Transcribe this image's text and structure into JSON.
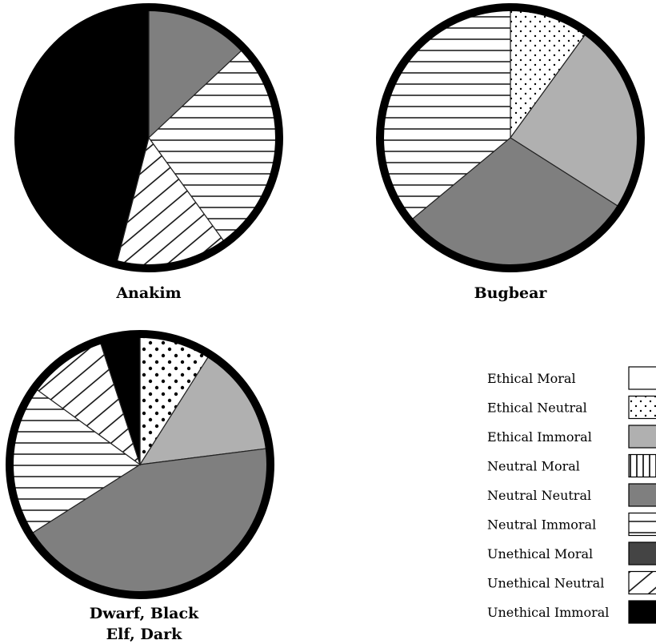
{
  "chart_data": [
    {
      "type": "pie",
      "title": "Anakim",
      "slices": [
        {
          "category": "Neutral Neutral",
          "value": 13
        },
        {
          "category": "Neutral Immoral",
          "value": 27
        },
        {
          "category": "Unethical Neutral",
          "value": 14
        },
        {
          "category": "Unethical Immoral",
          "value": 46
        }
      ]
    },
    {
      "type": "pie",
      "title": "Bugbear",
      "slices": [
        {
          "category": "Ethical Neutral",
          "value": 10
        },
        {
          "category": "Ethical Immoral",
          "value": 24
        },
        {
          "category": "Neutral Neutral",
          "value": 30
        },
        {
          "category": "Neutral Immoral",
          "value": 36
        }
      ]
    },
    {
      "type": "pie",
      "title": "Dwarf, Black",
      "subtitle": "Elf, Dark",
      "slices": [
        {
          "category": "Ethical Neutral",
          "value": 9
        },
        {
          "category": "Ethical Immoral",
          "value": 14
        },
        {
          "category": "Neutral Neutral",
          "value": 43
        },
        {
          "category": "Neutral Immoral",
          "value": 19
        },
        {
          "category": "Unethical Neutral",
          "value": 10
        },
        {
          "category": "Unethical Immoral",
          "value": 5
        }
      ]
    }
  ],
  "legend": {
    "placement": "bottom-right",
    "items": [
      {
        "label": "Ethical Moral",
        "pattern": "white"
      },
      {
        "label": "Ethical Neutral",
        "pattern": "dots"
      },
      {
        "label": "Ethical Immoral",
        "pattern": "light-gray"
      },
      {
        "label": "Neutral Moral",
        "pattern": "vertical-lines"
      },
      {
        "label": "Neutral Neutral",
        "pattern": "medium-gray"
      },
      {
        "label": "Neutral Immoral",
        "pattern": "horizontal-lines"
      },
      {
        "label": "Unethical Moral",
        "pattern": "dark-gray"
      },
      {
        "label": "Unethical Neutral",
        "pattern": "diagonal-lines"
      },
      {
        "label": "Unethical Immoral",
        "pattern": "black"
      }
    ]
  },
  "colors": {
    "light-gray": "#b0b0b0",
    "medium-gray": "#7f7f7f",
    "dark-gray": "#444444",
    "black": "#000000",
    "white": "#ffffff"
  }
}
